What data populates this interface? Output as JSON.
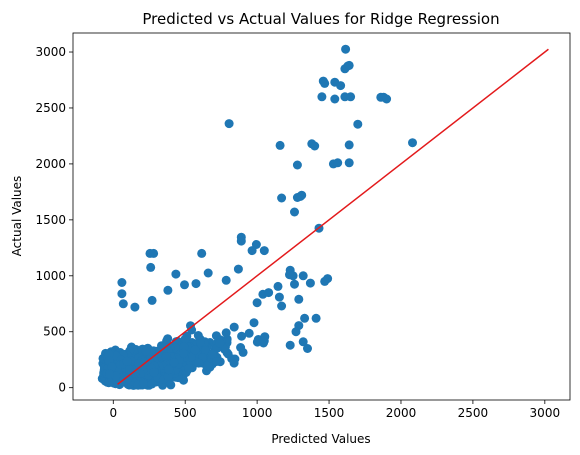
{
  "chart_data": {
    "type": "scatter",
    "title": "Predicted vs Actual Values for Ridge Regression",
    "xlabel": "Predicted Values",
    "ylabel": "Actual Values",
    "xlim": [
      -280,
      3175
    ],
    "ylim": [
      -110,
      3170
    ],
    "x_ticks": [
      0,
      500,
      1000,
      1500,
      2000,
      2500,
      3000
    ],
    "y_ticks": [
      0,
      500,
      1000,
      1500,
      2000,
      2500,
      3000
    ],
    "grid": false,
    "point_color": "#1f77b4",
    "line_color": "#e31a1c",
    "reference_line": {
      "x": [
        30,
        3025
      ],
      "y": [
        30,
        3025
      ]
    },
    "outlier_points": [
      {
        "x": 1615,
        "y": 3025
      },
      {
        "x": 1630,
        "y": 2875
      },
      {
        "x": 1610,
        "y": 2850
      },
      {
        "x": 1640,
        "y": 2880
      },
      {
        "x": 1460,
        "y": 2740
      },
      {
        "x": 1470,
        "y": 2720
      },
      {
        "x": 1540,
        "y": 2730
      },
      {
        "x": 1580,
        "y": 2700
      },
      {
        "x": 1450,
        "y": 2600
      },
      {
        "x": 1540,
        "y": 2580
      },
      {
        "x": 1610,
        "y": 2600
      },
      {
        "x": 1650,
        "y": 2600
      },
      {
        "x": 1860,
        "y": 2595
      },
      {
        "x": 1880,
        "y": 2595
      },
      {
        "x": 1900,
        "y": 2580
      },
      {
        "x": 1700,
        "y": 2355
      },
      {
        "x": 805,
        "y": 2360
      },
      {
        "x": 1160,
        "y": 2165
      },
      {
        "x": 1380,
        "y": 2180
      },
      {
        "x": 1400,
        "y": 2160
      },
      {
        "x": 2080,
        "y": 2190
      },
      {
        "x": 1640,
        "y": 2170
      },
      {
        "x": 1280,
        "y": 1990
      },
      {
        "x": 1530,
        "y": 2000
      },
      {
        "x": 1560,
        "y": 2010
      },
      {
        "x": 1640,
        "y": 2010
      },
      {
        "x": 1310,
        "y": 1720
      },
      {
        "x": 1300,
        "y": 1710
      },
      {
        "x": 1280,
        "y": 1700
      },
      {
        "x": 1170,
        "y": 1695
      },
      {
        "x": 1260,
        "y": 1570
      },
      {
        "x": 1430,
        "y": 1425
      },
      {
        "x": 890,
        "y": 1345
      },
      {
        "x": 890,
        "y": 1310
      },
      {
        "x": 995,
        "y": 1280
      },
      {
        "x": 965,
        "y": 1225
      },
      {
        "x": 1050,
        "y": 1225
      },
      {
        "x": 255,
        "y": 1200
      },
      {
        "x": 280,
        "y": 1200
      },
      {
        "x": 615,
        "y": 1200
      },
      {
        "x": 60,
        "y": 940
      },
      {
        "x": 260,
        "y": 1075
      },
      {
        "x": 435,
        "y": 1015
      },
      {
        "x": 660,
        "y": 1025
      },
      {
        "x": 870,
        "y": 1060
      },
      {
        "x": 1230,
        "y": 1050
      },
      {
        "x": 1225,
        "y": 1010
      },
      {
        "x": 1250,
        "y": 1000
      },
      {
        "x": 1320,
        "y": 1000
      },
      {
        "x": 1490,
        "y": 975
      },
      {
        "x": 1470,
        "y": 950
      },
      {
        "x": 1370,
        "y": 935
      },
      {
        "x": 1260,
        "y": 925
      },
      {
        "x": 785,
        "y": 960
      },
      {
        "x": 575,
        "y": 930
      },
      {
        "x": 495,
        "y": 920
      },
      {
        "x": 380,
        "y": 870
      },
      {
        "x": 1145,
        "y": 905
      },
      {
        "x": 1040,
        "y": 835
      },
      {
        "x": 1080,
        "y": 850
      },
      {
        "x": 1155,
        "y": 810
      },
      {
        "x": 1290,
        "y": 790
      },
      {
        "x": 60,
        "y": 840
      },
      {
        "x": 70,
        "y": 750
      },
      {
        "x": 150,
        "y": 720
      },
      {
        "x": 270,
        "y": 780
      },
      {
        "x": 1000,
        "y": 760
      },
      {
        "x": 1170,
        "y": 730
      },
      {
        "x": 1330,
        "y": 620
      },
      {
        "x": 1410,
        "y": 620
      },
      {
        "x": 1290,
        "y": 555
      },
      {
        "x": 1270,
        "y": 500
      },
      {
        "x": 1320,
        "y": 410
      },
      {
        "x": 1230,
        "y": 380
      },
      {
        "x": 1350,
        "y": 350
      }
    ],
    "dense_region": {
      "description_hidden": true,
      "count": 1700,
      "x_range": [
        -140,
        1150
      ],
      "y_range": [
        20,
        700
      ],
      "seed": 7
    }
  }
}
